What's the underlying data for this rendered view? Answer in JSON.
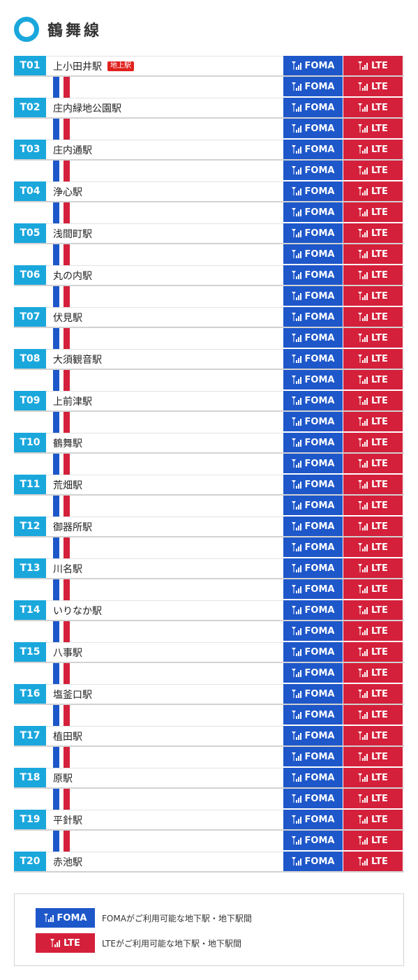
{
  "line": {
    "name": "鶴舞線",
    "color": "#1aa7dc"
  },
  "colors": {
    "foma": "#1e57c9",
    "lte": "#d4203a",
    "badge": "#e0211d"
  },
  "signal_labels": {
    "foma": "FOMA",
    "lte": "LTE",
    "icon": "signal-antenna-icon"
  },
  "stations": [
    {
      "code": "T01",
      "name": "上小田井駅",
      "badge": "地上駅"
    },
    {
      "code": "T02",
      "name": "庄内緑地公園駅"
    },
    {
      "code": "T03",
      "name": "庄内通駅"
    },
    {
      "code": "T04",
      "name": "浄心駅"
    },
    {
      "code": "T05",
      "name": "浅間町駅"
    },
    {
      "code": "T06",
      "name": "丸の内駅"
    },
    {
      "code": "T07",
      "name": "伏見駅"
    },
    {
      "code": "T08",
      "name": "大須観音駅"
    },
    {
      "code": "T09",
      "name": "上前津駅"
    },
    {
      "code": "T10",
      "name": "鶴舞駅"
    },
    {
      "code": "T11",
      "name": "荒畑駅"
    },
    {
      "code": "T12",
      "name": "御器所駅"
    },
    {
      "code": "T13",
      "name": "川名駅"
    },
    {
      "code": "T14",
      "name": "いりなか駅"
    },
    {
      "code": "T15",
      "name": "八事駅"
    },
    {
      "code": "T16",
      "name": "塩釜口駅"
    },
    {
      "code": "T17",
      "name": "植田駅"
    },
    {
      "code": "T18",
      "name": "原駅"
    },
    {
      "code": "T19",
      "name": "平針駅"
    },
    {
      "code": "T20",
      "name": "赤池駅"
    }
  ],
  "legend": {
    "foma_label": "FOMA",
    "foma_text": "FOMAがご利用可能な地下駅・地下駅間",
    "lte_label": "LTE",
    "lte_text": "LTEがご利用可能な地下駅・地下駅間"
  }
}
